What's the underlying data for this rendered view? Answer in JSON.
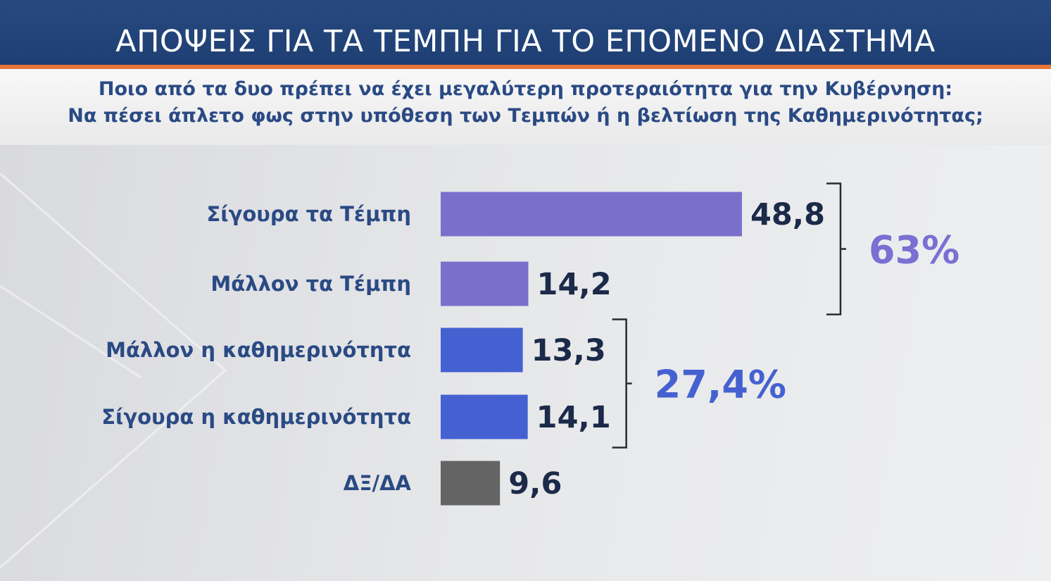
{
  "header": {
    "title": "ΑΠΟΨΕΙΣ ΓΙΑ ΤΑ ΤΕΜΠΗ ΓΙΑ ΤΟ ΕΠΟΜΕΝΟ ΔΙΑΣΤΗΜΑ",
    "accent_color": "#e8753a",
    "background_color": "#26497f"
  },
  "question": {
    "line1": "Ποιο από τα δυο πρέπει να έχει μεγαλύτερη προτεραιότητα  για την Κυβέρνηση:",
    "line2": "Να πέσει άπλετο φως στην υπόθεση των Τεμπών  ή η βελτίωση της Καθημερινότητας;"
  },
  "chart_data": {
    "type": "bar",
    "orientation": "horizontal",
    "title": "",
    "xlabel": "",
    "ylabel": "",
    "grid": false,
    "categories": [
      "Σίγουρα τα Τέμπη",
      "Μάλλον τα Τέμπη",
      "Μάλλον η καθημερινότητα",
      "Σίγουρα η καθημερινότητα",
      "ΔΞ/ΔΑ"
    ],
    "values": [
      48.8,
      14.2,
      13.3,
      14.1,
      9.6
    ],
    "value_labels": [
      "48,8",
      "14,2",
      "13,3",
      "14,1",
      "9,6"
    ],
    "bar_colors": [
      "#7a70cc",
      "#7a70cc",
      "#4561d1",
      "#4561d1",
      "#646464"
    ],
    "groups": [
      {
        "label": "63%",
        "color": "#7a6fd2",
        "members": [
          0,
          1
        ]
      },
      {
        "label": "27,4%",
        "color": "#4561d1",
        "members": [
          2,
          3
        ]
      }
    ]
  }
}
